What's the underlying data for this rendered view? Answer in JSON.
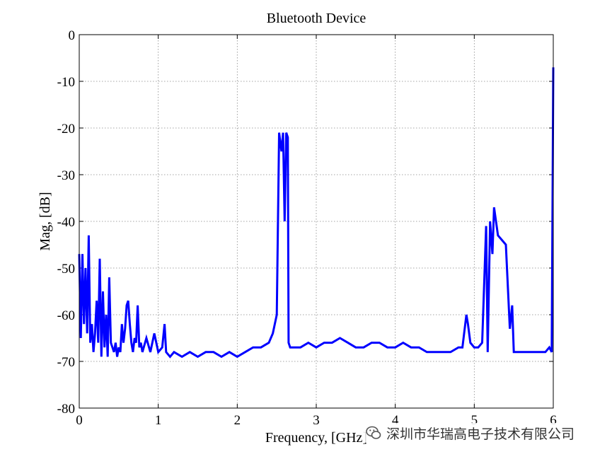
{
  "chart_data": {
    "type": "line",
    "title": "Bluetooth Device",
    "xlabel": "Frequency, [GHz]",
    "ylabel": "Mag, [dB]",
    "xlim": [
      0,
      6
    ],
    "ylim": [
      -80,
      0
    ],
    "xticks": [
      0,
      1,
      2,
      3,
      4,
      5,
      6
    ],
    "yticks": [
      0,
      -10,
      -20,
      -30,
      -40,
      -50,
      -60,
      -70,
      -80
    ],
    "grid": true,
    "line_color": "#0000ff",
    "series": [
      {
        "name": "",
        "x": [
          0,
          0.02,
          0.04,
          0.06,
          0.08,
          0.1,
          0.12,
          0.14,
          0.16,
          0.18,
          0.2,
          0.22,
          0.24,
          0.26,
          0.28,
          0.3,
          0.32,
          0.34,
          0.36,
          0.38,
          0.4,
          0.42,
          0.44,
          0.46,
          0.48,
          0.5,
          0.52,
          0.54,
          0.56,
          0.58,
          0.6,
          0.62,
          0.64,
          0.66,
          0.68,
          0.7,
          0.72,
          0.74,
          0.76,
          0.78,
          0.8,
          0.85,
          0.9,
          0.95,
          1.0,
          1.05,
          1.08,
          1.1,
          1.15,
          1.2,
          1.3,
          1.4,
          1.5,
          1.6,
          1.7,
          1.8,
          1.9,
          2.0,
          2.1,
          2.2,
          2.3,
          2.4,
          2.45,
          2.5,
          2.53,
          2.56,
          2.58,
          2.6,
          2.62,
          2.64,
          2.65,
          2.67,
          2.7,
          2.8,
          2.9,
          3.0,
          3.1,
          3.2,
          3.3,
          3.4,
          3.5,
          3.6,
          3.7,
          3.8,
          3.9,
          4.0,
          4.1,
          4.2,
          4.3,
          4.4,
          4.5,
          4.6,
          4.7,
          4.8,
          4.85,
          4.9,
          4.92,
          4.95,
          5.0,
          5.05,
          5.1,
          5.15,
          5.17,
          5.2,
          5.23,
          5.25,
          5.3,
          5.35,
          5.4,
          5.45,
          5.48,
          5.5,
          5.55,
          5.6,
          5.7,
          5.8,
          5.9,
          5.95,
          5.98,
          6.0
        ],
        "y": [
          -47,
          -65,
          -47,
          -62,
          -50,
          -64,
          -43,
          -66,
          -62,
          -68,
          -64,
          -57,
          -66,
          -48,
          -69,
          -55,
          -67,
          -60,
          -69,
          -52,
          -66,
          -67,
          -68,
          -66,
          -69,
          -67,
          -68,
          -62,
          -66,
          -63,
          -58,
          -57,
          -62,
          -66,
          -68,
          -65,
          -66,
          -58,
          -67,
          -66,
          -68,
          -65,
          -68,
          -64,
          -68,
          -67,
          -62,
          -68,
          -69,
          -68,
          -69,
          -68,
          -69,
          -68,
          -68,
          -69,
          -68,
          -69,
          -68,
          -67,
          -67,
          -66,
          -64,
          -60,
          -21,
          -25,
          -21,
          -40,
          -21,
          -22,
          -66,
          -67,
          -67,
          -67,
          -66,
          -67,
          -66,
          -66,
          -65,
          -66,
          -67,
          -67,
          -66,
          -66,
          -67,
          -67,
          -66,
          -67,
          -67,
          -68,
          -68,
          -68,
          -68,
          -67,
          -67,
          -60,
          -62,
          -66,
          -67,
          -67,
          -66,
          -41,
          -68,
          -40,
          -47,
          -37,
          -43,
          -44,
          -45,
          -63,
          -58,
          -68,
          -68,
          -68,
          -68,
          -68,
          -68,
          -67,
          -68,
          -7
        ]
      }
    ]
  },
  "watermark": {
    "text": "深圳市华瑞高电子技术有限公司",
    "icon": "wechat-icon"
  }
}
